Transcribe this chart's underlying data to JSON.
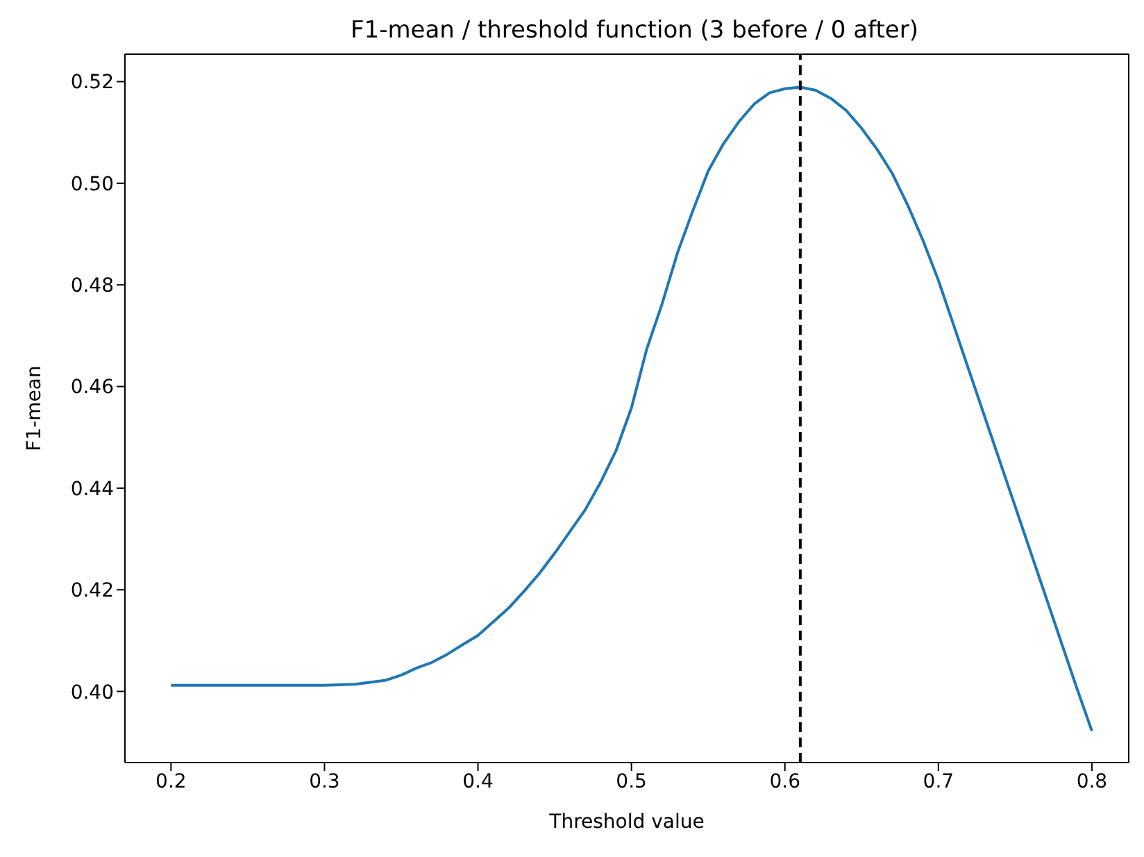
{
  "chart_data": {
    "type": "line",
    "title": "F1-mean / threshold function (3 before / 0 after)",
    "xlabel": "Threshold value",
    "ylabel": "F1-mean",
    "x": [
      0.2,
      0.25,
      0.3,
      0.32,
      0.34,
      0.35,
      0.36,
      0.37,
      0.38,
      0.39,
      0.4,
      0.41,
      0.42,
      0.43,
      0.44,
      0.45,
      0.46,
      0.47,
      0.48,
      0.49,
      0.5,
      0.51,
      0.52,
      0.53,
      0.54,
      0.55,
      0.56,
      0.57,
      0.58,
      0.59,
      0.6,
      0.61,
      0.62,
      0.63,
      0.64,
      0.65,
      0.66,
      0.67,
      0.68,
      0.69,
      0.7,
      0.71,
      0.72,
      0.73,
      0.74,
      0.75,
      0.76,
      0.77,
      0.78,
      0.79,
      0.8
    ],
    "series": [
      {
        "color": "#1f77b4",
        "values": [
          0.4012,
          0.4012,
          0.4012,
          0.4014,
          0.4022,
          0.4032,
          0.4046,
          0.4057,
          0.4073,
          0.4092,
          0.411,
          0.4137,
          0.4164,
          0.4197,
          0.4232,
          0.4272,
          0.4315,
          0.4358,
          0.4412,
          0.4474,
          0.4558,
          0.4674,
          0.4763,
          0.4863,
          0.4946,
          0.5024,
          0.5078,
          0.5121,
          0.5156,
          0.5178,
          0.5186,
          0.5189,
          0.5183,
          0.5167,
          0.5143,
          0.5108,
          0.5067,
          0.5019,
          0.4957,
          0.4887,
          0.4809,
          0.472,
          0.4631,
          0.4542,
          0.4453,
          0.4364,
          0.4275,
          0.4186,
          0.4097,
          0.4008,
          0.3922
        ]
      }
    ],
    "xlim": [
      0.17,
      0.824
    ],
    "ylim": [
      0.386,
      0.5254
    ],
    "xticks": [
      0.2,
      0.3,
      0.4,
      0.5,
      0.6,
      0.7,
      0.8
    ],
    "yticks": [
      {
        "value": 0.4,
        "label": "0.40"
      },
      {
        "value": 0.42,
        "label": "0.42"
      },
      {
        "value": 0.44,
        "label": "0.44"
      },
      {
        "value": 0.46,
        "label": "0.46"
      },
      {
        "value": 0.48,
        "label": "0.48"
      },
      {
        "value": 0.5,
        "label": "0.50"
      },
      {
        "value": 0.52,
        "label": "0.52"
      }
    ],
    "ref_lines": [
      {
        "axis": "x",
        "value": 0.61,
        "color": "#000000",
        "line_style": "dashed"
      }
    ],
    "grid": false,
    "legend": false,
    "marker": "none",
    "line_style": "solid"
  }
}
